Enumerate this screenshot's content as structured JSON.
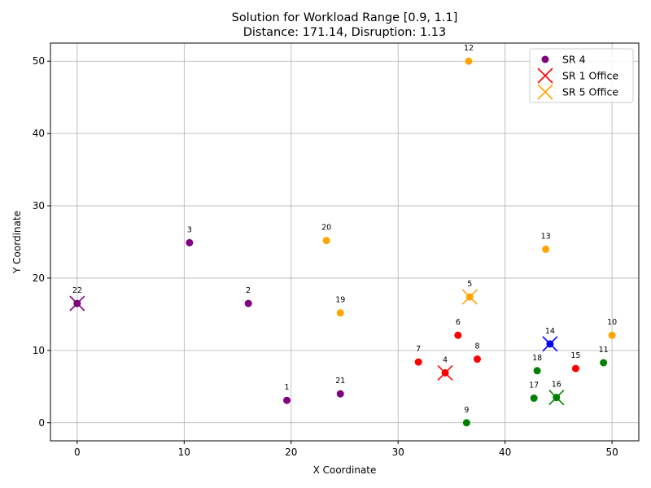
{
  "chart_data": {
    "type": "scatter",
    "title_line1": "Solution for Workload Range [0.9, 1.1]",
    "title_line2": "Distance: 171.14, Disruption: 1.13",
    "xlabel": "X Coordinate",
    "ylabel": "Y Coordinate",
    "xlim": [
      -2.5,
      52.5
    ],
    "ylim": [
      -2.5,
      52.5
    ],
    "xticks": [
      0,
      10,
      20,
      30,
      40,
      50
    ],
    "yticks": [
      0,
      10,
      20,
      30,
      40,
      50
    ],
    "grid": true,
    "legend_position": "top-right",
    "legend": [
      {
        "label": "SR 4",
        "marker": "circle",
        "color": "#800080"
      },
      {
        "label": "SR 1 Office",
        "marker": "x",
        "color": "#ff0000"
      },
      {
        "label": "SR 5 Office",
        "marker": "x",
        "color": "#ffa500"
      }
    ],
    "colors": {
      "purple": "#800080",
      "red": "#ff0000",
      "orange": "#ffa500",
      "green": "#008000",
      "blue": "#0000ff"
    },
    "points": [
      {
        "id": "1",
        "x": 19.6,
        "y": 3.1,
        "color": "purple"
      },
      {
        "id": "2",
        "x": 16.0,
        "y": 16.5,
        "color": "purple"
      },
      {
        "id": "3",
        "x": 10.5,
        "y": 24.9,
        "color": "purple"
      },
      {
        "id": "4",
        "x": 34.4,
        "y": 6.9,
        "color": "red"
      },
      {
        "id": "5",
        "x": 36.7,
        "y": 17.4,
        "color": "orange"
      },
      {
        "id": "6",
        "x": 35.6,
        "y": 12.1,
        "color": "red"
      },
      {
        "id": "7",
        "x": 31.9,
        "y": 8.4,
        "color": "red"
      },
      {
        "id": "8",
        "x": 37.4,
        "y": 8.8,
        "color": "red"
      },
      {
        "id": "9",
        "x": 36.4,
        "y": 0.0,
        "color": "green"
      },
      {
        "id": "10",
        "x": 50.0,
        "y": 12.1,
        "color": "orange"
      },
      {
        "id": "11",
        "x": 49.2,
        "y": 8.3,
        "color": "green"
      },
      {
        "id": "12",
        "x": 36.6,
        "y": 50.0,
        "color": "orange"
      },
      {
        "id": "13",
        "x": 43.8,
        "y": 24.0,
        "color": "orange"
      },
      {
        "id": "14",
        "x": 44.2,
        "y": 10.9,
        "color": "blue"
      },
      {
        "id": "15",
        "x": 46.6,
        "y": 7.5,
        "color": "red"
      },
      {
        "id": "16",
        "x": 44.8,
        "y": 3.5,
        "color": "green"
      },
      {
        "id": "17",
        "x": 42.7,
        "y": 3.4,
        "color": "green"
      },
      {
        "id": "18",
        "x": 43.0,
        "y": 7.2,
        "color": "green"
      },
      {
        "id": "19",
        "x": 24.6,
        "y": 15.2,
        "color": "orange"
      },
      {
        "id": "20",
        "x": 23.3,
        "y": 25.2,
        "color": "orange"
      },
      {
        "id": "21",
        "x": 24.6,
        "y": 4.0,
        "color": "purple"
      },
      {
        "id": "22",
        "x": 0.0,
        "y": 16.5,
        "color": "purple"
      }
    ],
    "offices": [
      {
        "at_point": "22",
        "x": 0.0,
        "y": 16.5,
        "color": "purple"
      },
      {
        "at_point": "4",
        "x": 34.4,
        "y": 6.9,
        "color": "red"
      },
      {
        "at_point": "5",
        "x": 36.7,
        "y": 17.4,
        "color": "orange"
      },
      {
        "at_point": "14",
        "x": 44.2,
        "y": 10.9,
        "color": "blue"
      },
      {
        "at_point": "16",
        "x": 44.8,
        "y": 3.5,
        "color": "green"
      }
    ]
  }
}
